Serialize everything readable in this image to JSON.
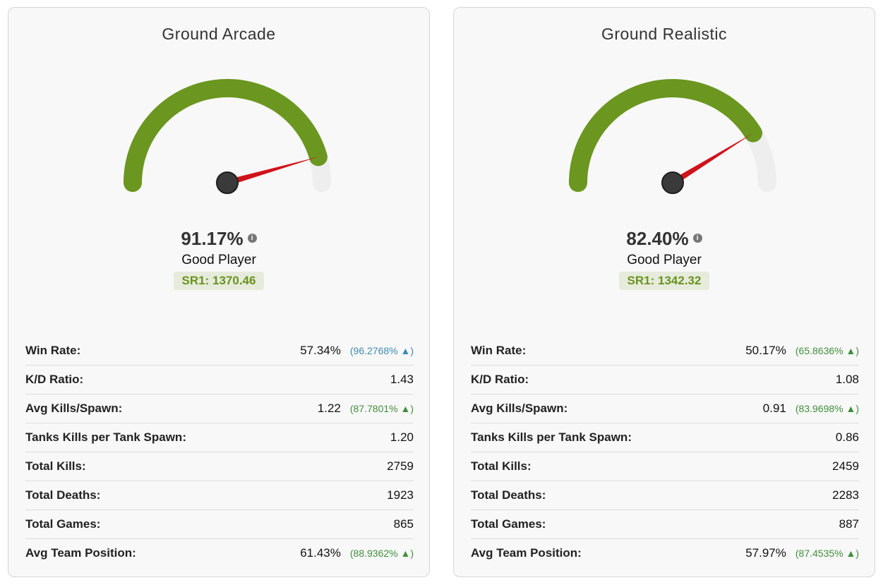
{
  "cards": [
    {
      "title": "Ground Arcade",
      "score_text": "91.17%",
      "score_value": 91.17,
      "rank_label": "Good Player",
      "sr_label": "SR1: 1370.46",
      "stats": [
        {
          "label": "Win Rate:",
          "value": "57.34%",
          "pct": "(96.2768% ▲)",
          "pct_color": "blue"
        },
        {
          "label": "K/D Ratio:",
          "value": "1.43",
          "pct": "",
          "pct_color": ""
        },
        {
          "label": "Avg Kills/Spawn:",
          "value": "1.22",
          "pct": "(87.7801% ▲)",
          "pct_color": "green"
        },
        {
          "label": "Tanks Kills per Tank Spawn:",
          "value": "1.20",
          "pct": "",
          "pct_color": ""
        },
        {
          "label": "Total Kills:",
          "value": "2759",
          "pct": "",
          "pct_color": ""
        },
        {
          "label": "Total Deaths:",
          "value": "1923",
          "pct": "",
          "pct_color": ""
        },
        {
          "label": "Total Games:",
          "value": "865",
          "pct": "",
          "pct_color": ""
        },
        {
          "label": "Avg Team Position:",
          "value": "61.43%",
          "pct": "(88.9362% ▲)",
          "pct_color": "green"
        }
      ]
    },
    {
      "title": "Ground Realistic",
      "score_text": "82.40%",
      "score_value": 82.4,
      "rank_label": "Good Player",
      "sr_label": "SR1: 1342.32",
      "stats": [
        {
          "label": "Win Rate:",
          "value": "50.17%",
          "pct": "(65.8636% ▲)",
          "pct_color": "green"
        },
        {
          "label": "K/D Ratio:",
          "value": "1.08",
          "pct": "",
          "pct_color": ""
        },
        {
          "label": "Avg Kills/Spawn:",
          "value": "0.91",
          "pct": "(83.9698% ▲)",
          "pct_color": "green"
        },
        {
          "label": "Tanks Kills per Tank Spawn:",
          "value": "0.86",
          "pct": "",
          "pct_color": ""
        },
        {
          "label": "Total Kills:",
          "value": "2459",
          "pct": "",
          "pct_color": ""
        },
        {
          "label": "Total Deaths:",
          "value": "2283",
          "pct": "",
          "pct_color": ""
        },
        {
          "label": "Total Games:",
          "value": "887",
          "pct": "",
          "pct_color": ""
        },
        {
          "label": "Avg Team Position:",
          "value": "57.97%",
          "pct": "(87.4535% ▲)",
          "pct_color": "green"
        }
      ]
    }
  ],
  "colors": {
    "gauge_fill": "#6b961f",
    "gauge_track": "#eeeeee",
    "needle": "#d0121b",
    "hub": "#3a3a3a"
  },
  "info_icon": "info-icon"
}
